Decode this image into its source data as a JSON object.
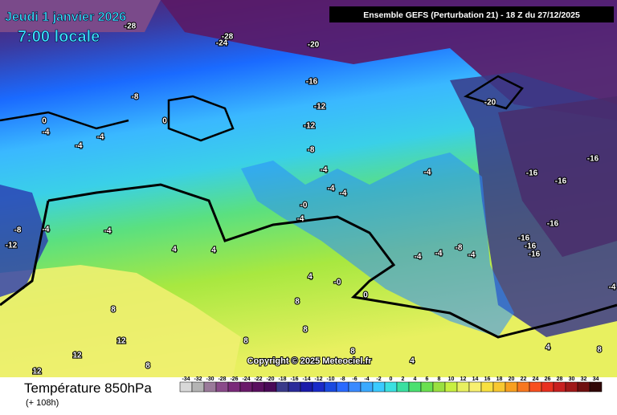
{
  "header": {
    "date": "Jeudi 1 janvier 2026",
    "time": "7:00 locale",
    "run": "Ensemble GEFS  (Perturbation 21)  -  18 Z du 27/12/2025"
  },
  "footer": {
    "title": "Température 850hPa",
    "lead": "(+ 108h)",
    "copyright": "Copyright © 2025 Meteociel.fr"
  },
  "colorbar": {
    "ticks": [
      -34,
      -32,
      -30,
      -28,
      -26,
      -24,
      -22,
      -20,
      -18,
      -16,
      -14,
      -12,
      -10,
      -8,
      -6,
      -4,
      -2,
      0,
      2,
      4,
      6,
      8,
      10,
      12,
      14,
      16,
      18,
      20,
      22,
      24,
      26,
      28,
      30,
      32,
      34
    ],
    "colors": [
      "#d8d8d8",
      "#b4b4b4",
      "#9a7a9a",
      "#8a4a8a",
      "#7a2a7a",
      "#6a1a6a",
      "#5a1060",
      "#4a0a58",
      "#3a3a8a",
      "#2a2a9a",
      "#1a1aaa",
      "#1a2ac8",
      "#1a4ae0",
      "#2a6aff",
      "#3a8aff",
      "#3aaaff",
      "#3acaff",
      "#3ae0e0",
      "#3ae0a0",
      "#4ae070",
      "#6ae050",
      "#9ae040",
      "#c8f040",
      "#e8f060",
      "#f8f070",
      "#f8e040",
      "#f8c830",
      "#f8a020",
      "#f87820",
      "#f85020",
      "#e83020",
      "#c82020",
      "#a01818",
      "#701010",
      "#300808"
    ]
  },
  "contour_labels": [
    "-28",
    "-28",
    "-24",
    "-20",
    "-16",
    "-12",
    "-12",
    "-8",
    "-20",
    "-16",
    "-16",
    "-16",
    "-16",
    "-16",
    "-16",
    "-16",
    "-8",
    "0",
    "-4",
    "0",
    "-4",
    "-4",
    "-4",
    "-4",
    "-4",
    "-0",
    "-4",
    "-4",
    "-8",
    "-4",
    "-12",
    "-4",
    "4",
    "4",
    "4",
    "-0",
    "0",
    "-4",
    "-4",
    "-8",
    "-4",
    "8",
    "12",
    "12",
    "8",
    "8",
    "8",
    "8",
    "8",
    "4",
    "4",
    "8",
    "-4",
    "12"
  ]
}
